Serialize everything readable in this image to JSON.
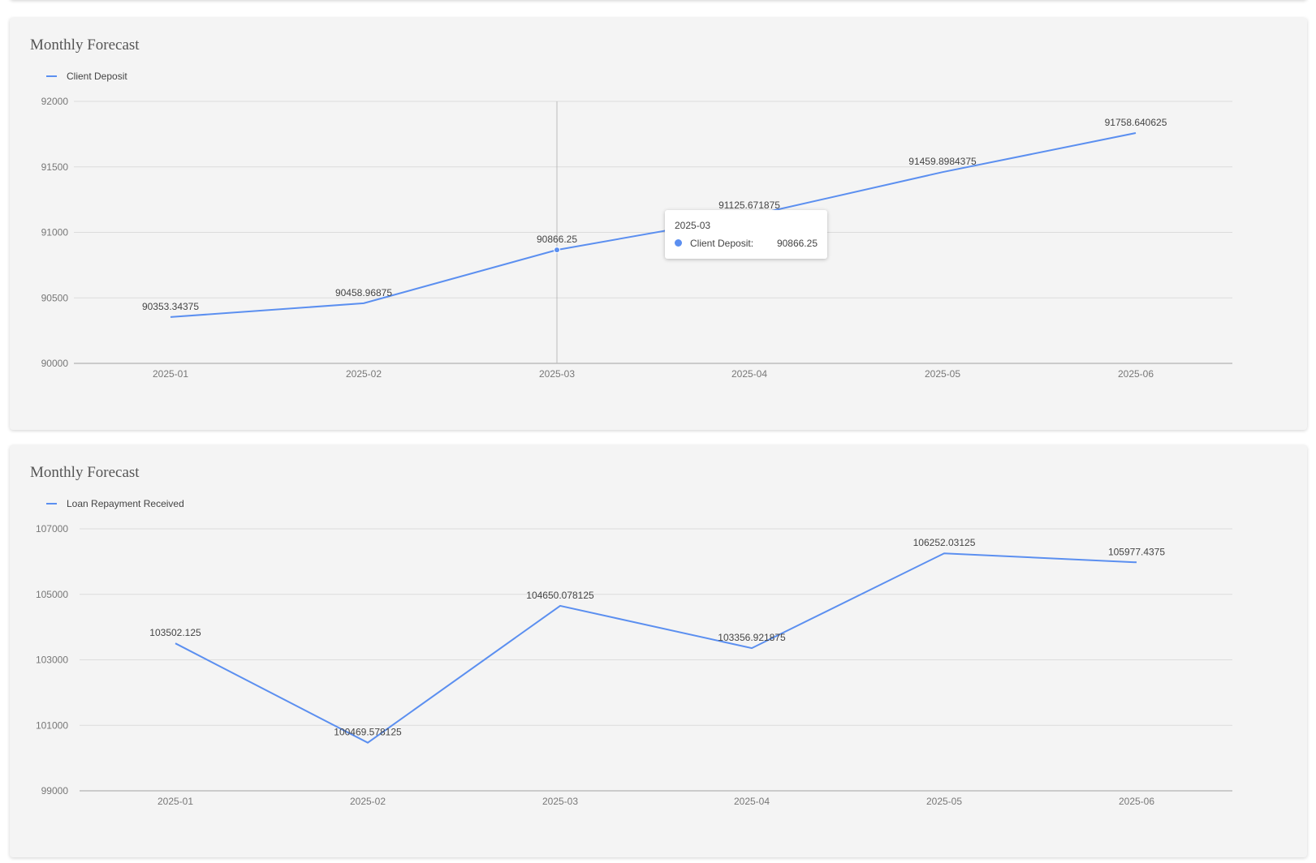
{
  "colors": {
    "series": "#5b8ff0",
    "grid": "#dcdcdc",
    "axis": "#bdbdbd",
    "tick_text": "#777777",
    "label_text": "#444444"
  },
  "chart_data": [
    {
      "type": "line",
      "title": "Monthly Forecast",
      "categories": [
        "2025-01",
        "2025-02",
        "2025-03",
        "2025-04",
        "2025-05",
        "2025-06"
      ],
      "series": [
        {
          "name": "Client Deposit",
          "values": [
            90353.34375,
            90458.96875,
            90866.25,
            91125.671875,
            91459.8984375,
            91758.640625
          ],
          "labels": [
            "90353.34375",
            "90458.96875",
            "90866.25",
            "91125.671875",
            "91459.8984375",
            "91758.640625"
          ]
        }
      ],
      "ylim": [
        90000,
        92000
      ],
      "yticks": [
        "92000",
        "91500",
        "91000",
        "90500",
        "90000"
      ],
      "grid": true,
      "legend": "top-left",
      "tooltip": {
        "category": "2025-03",
        "series": "Client Deposit:",
        "value": "90866.25"
      }
    },
    {
      "type": "line",
      "title": "Monthly Forecast",
      "categories": [
        "2025-01",
        "2025-02",
        "2025-03",
        "2025-04",
        "2025-05",
        "2025-06"
      ],
      "series": [
        {
          "name": "Loan Repayment Received",
          "values": [
            103502.125,
            100469.578125,
            104650.078125,
            103356.921875,
            106252.03125,
            105977.4375
          ],
          "labels": [
            "103502.125",
            "100469.578125",
            "104650.078125",
            "103356.921875",
            "106252.03125",
            "105977.4375"
          ]
        }
      ],
      "ylim": [
        99000,
        107000
      ],
      "yticks": [
        "107000",
        "105000",
        "103000",
        "101000",
        "99000"
      ],
      "grid": true,
      "legend": "top-left"
    }
  ]
}
